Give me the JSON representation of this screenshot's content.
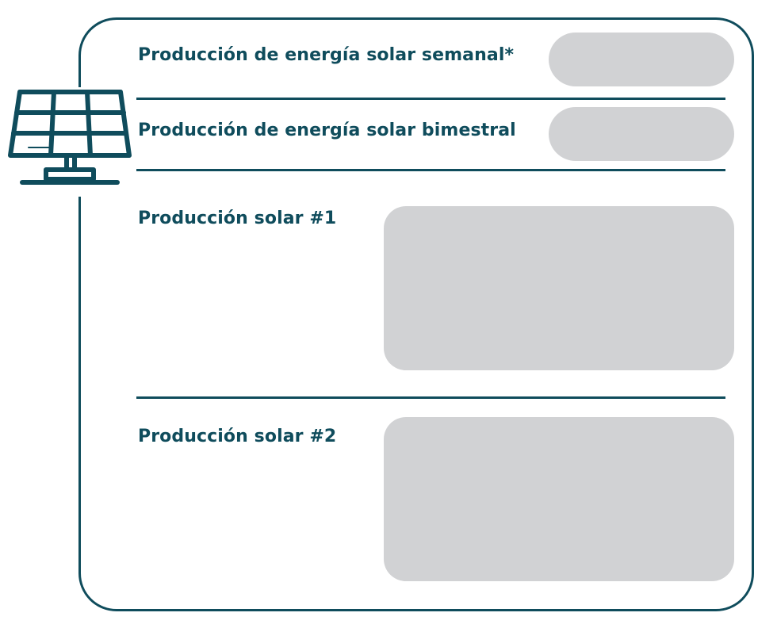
{
  "colors": {
    "accent": "#0f4c5c",
    "field_fill": "#d1d2d4",
    "background": "#ffffff"
  },
  "icon": "solar-panel-icon",
  "form": {
    "weekly_label": "Producción de energía solar semanal*",
    "bimonthly_label": "Producción de energía solar bimestral",
    "solar1_label": "Producción solar #1",
    "solar2_label": "Producción solar #2"
  }
}
